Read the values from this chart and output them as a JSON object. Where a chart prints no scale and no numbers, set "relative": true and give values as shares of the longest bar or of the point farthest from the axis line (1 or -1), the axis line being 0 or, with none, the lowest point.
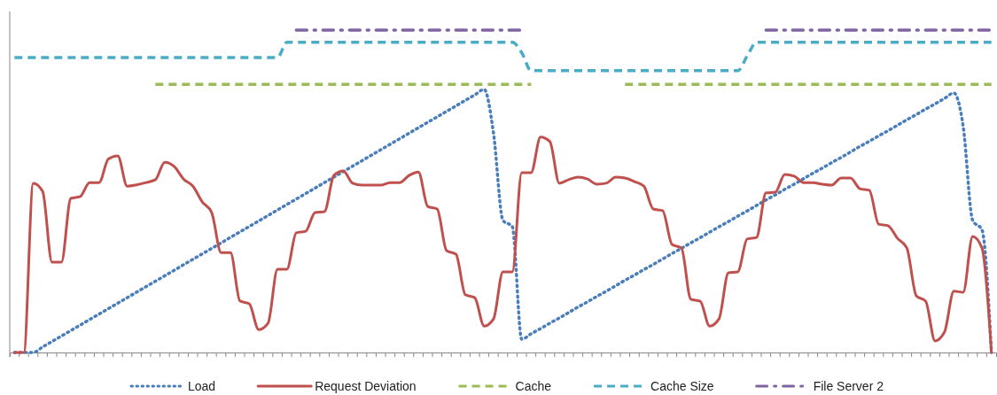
{
  "chart_data": {
    "type": "line",
    "relative": true,
    "categories": [
      null,
      null,
      null,
      null,
      null,
      null,
      null,
      null,
      null,
      null,
      null,
      null,
      null,
      null,
      null,
      null,
      null,
      null,
      null,
      null,
      null,
      null,
      null,
      null,
      null,
      null,
      null,
      null,
      null,
      null,
      null,
      null,
      null,
      null,
      null,
      null,
      null,
      null,
      null,
      null,
      null,
      null,
      null,
      null,
      null,
      null,
      null,
      null,
      null,
      null,
      null,
      null,
      null,
      null,
      null,
      null,
      null,
      null,
      null,
      null,
      null,
      null,
      null,
      null,
      null,
      null,
      null,
      null,
      null,
      null,
      null,
      null,
      null,
      null,
      null,
      null,
      null,
      null,
      null,
      null,
      null,
      null,
      null,
      null,
      null,
      null,
      null,
      null,
      null,
      null,
      null,
      null,
      null,
      null,
      null,
      null,
      null,
      null,
      null,
      null,
      null,
      null,
      null,
      null,
      null
    ],
    "grid": false,
    "legend": "bottom",
    "marker": "none",
    "series": [
      {
        "name": "Load",
        "color": "#4a7ebb",
        "line_style": "dotted",
        "values": [
          0,
          0,
          0,
          0.017,
          0.034,
          0.051,
          0.068,
          0.085,
          0.102,
          0.119,
          0.136,
          0.153,
          0.17,
          0.187,
          0.204,
          0.221,
          0.238,
          0.255,
          0.272,
          0.289,
          0.306,
          0.323,
          0.34,
          0.357,
          0.374,
          0.391,
          0.408,
          0.425,
          0.442,
          0.459,
          0.476,
          0.493,
          0.51,
          0.527,
          0.544,
          0.561,
          0.578,
          0.595,
          0.612,
          0.629,
          0.646,
          0.663,
          0.68,
          0.697,
          0.714,
          0.731,
          0.748,
          0.765,
          0.782,
          0.799,
          0.816,
          0.68,
          0.41,
          0.39,
          0.041,
          0.058,
          0.074,
          0.091,
          0.107,
          0.124,
          0.141,
          0.157,
          0.174,
          0.19,
          0.207,
          0.224,
          0.24,
          0.257,
          0.273,
          0.29,
          0.307,
          0.323,
          0.34,
          0.356,
          0.373,
          0.39,
          0.406,
          0.423,
          0.439,
          0.456,
          0.473,
          0.489,
          0.506,
          0.522,
          0.539,
          0.556,
          0.572,
          0.589,
          0.605,
          0.622,
          0.639,
          0.655,
          0.672,
          0.688,
          0.705,
          0.722,
          0.738,
          0.755,
          0.771,
          0.788,
          0.805,
          0.7,
          0.41,
          0.38,
          0
        ]
      },
      {
        "name": "Request Deviation",
        "color": "#c0504d",
        "line_style": "solid",
        "values": [
          0,
          0,
          0.525,
          0.5,
          0.28,
          0.28,
          0.478,
          0.484,
          0.527,
          0.527,
          0.6,
          0.61,
          0.516,
          0.52,
          0.527,
          0.536,
          0.59,
          0.577,
          0.538,
          0.516,
          0.467,
          0.434,
          0.31,
          0.31,
          0.16,
          0.151,
          0.071,
          0.091,
          0.258,
          0.258,
          0.371,
          0.376,
          0.434,
          0.437,
          0.549,
          0.563,
          0.525,
          0.519,
          0.519,
          0.519,
          0.527,
          0.527,
          0.549,
          0.56,
          0.453,
          0.445,
          0.316,
          0.305,
          0.179,
          0.17,
          0.082,
          0.104,
          0.25,
          0.25,
          0.558,
          0.558,
          0.668,
          0.654,
          0.525,
          0.536,
          0.544,
          0.538,
          0.522,
          0.525,
          0.544,
          0.541,
          0.53,
          0.516,
          0.445,
          0.44,
          0.335,
          0.324,
          0.165,
          0.159,
          0.082,
          0.104,
          0.247,
          0.25,
          0.352,
          0.357,
          0.495,
          0.497,
          0.552,
          0.547,
          0.527,
          0.527,
          0.522,
          0.519,
          0.541,
          0.541,
          0.508,
          0.503,
          0.398,
          0.393,
          0.354,
          0.324,
          0.176,
          0.159,
          0.036,
          0.063,
          0.19,
          0.187,
          0.36,
          0.324,
          0
        ]
      },
      {
        "name": "Cache",
        "color": "#9bbb59",
        "line_style": "dashed",
        "values": [
          null,
          null,
          null,
          null,
          null,
          null,
          null,
          null,
          null,
          null,
          null,
          null,
          null,
          null,
          null,
          0.832,
          0.832,
          0.832,
          0.832,
          0.832,
          0.832,
          0.832,
          0.832,
          0.832,
          0.832,
          0.832,
          0.832,
          0.832,
          0.832,
          0.832,
          0.832,
          0.832,
          0.832,
          0.832,
          0.832,
          0.832,
          0.832,
          0.832,
          0.832,
          0.832,
          0.832,
          0.832,
          0.832,
          0.832,
          0.832,
          0.832,
          0.832,
          0.832,
          0.832,
          0.832,
          0.832,
          0.832,
          0.832,
          0.832,
          0.832,
          0.832,
          null,
          null,
          null,
          null,
          null,
          null,
          null,
          null,
          null,
          0.832,
          0.832,
          0.832,
          0.832,
          0.832,
          0.832,
          0.832,
          0.832,
          0.832,
          0.832,
          0.832,
          0.832,
          0.832,
          0.832,
          0.832,
          0.832,
          0.832,
          0.832,
          0.832,
          0.832,
          0.832,
          0.832,
          0.832,
          0.832,
          0.832,
          0.832,
          0.832,
          0.832,
          0.832,
          0.832,
          0.832,
          0.832,
          0.832,
          0.832,
          0.832,
          0.832,
          0.832,
          0.832,
          0.832,
          0.832
        ]
      },
      {
        "name": "Cache Size",
        "color": "#4bacc6",
        "line_style": "dashed",
        "values": [
          0.915,
          0.915,
          0.915,
          0.915,
          0.915,
          0.915,
          0.915,
          0.915,
          0.915,
          0.915,
          0.915,
          0.915,
          0.915,
          0.915,
          0.915,
          0.915,
          0.915,
          0.915,
          0.915,
          0.915,
          0.915,
          0.915,
          0.915,
          0.915,
          0.915,
          0.915,
          0.915,
          0.915,
          0.915,
          0.962,
          0.962,
          0.962,
          0.962,
          0.962,
          0.962,
          0.962,
          0.962,
          0.962,
          0.962,
          0.962,
          0.962,
          0.962,
          0.962,
          0.962,
          0.962,
          0.962,
          0.962,
          0.962,
          0.962,
          0.962,
          0.962,
          0.962,
          0.962,
          0.962,
          0.93,
          0.874,
          0.874,
          0.874,
          0.874,
          0.874,
          0.874,
          0.874,
          0.874,
          0.874,
          0.874,
          0.874,
          0.874,
          0.874,
          0.874,
          0.874,
          0.874,
          0.874,
          0.874,
          0.874,
          0.874,
          0.874,
          0.874,
          0.874,
          0.92,
          0.962,
          0.962,
          0.962,
          0.962,
          0.962,
          0.962,
          0.962,
          0.962,
          0.962,
          0.962,
          0.962,
          0.962,
          0.962,
          0.962,
          0.962,
          0.962,
          0.962,
          0.962,
          0.962,
          0.962,
          0.962,
          0.962,
          0.962,
          0.962,
          0.962,
          0.962
        ]
      },
      {
        "name": "File Server 2",
        "color": "#8064a2",
        "line_style": "dashdot",
        "values": [
          null,
          null,
          null,
          null,
          null,
          null,
          null,
          null,
          null,
          null,
          null,
          null,
          null,
          null,
          null,
          null,
          null,
          null,
          null,
          null,
          null,
          null,
          null,
          null,
          null,
          null,
          null,
          null,
          null,
          null,
          1,
          1,
          1,
          1,
          1,
          1,
          1,
          1,
          1,
          1,
          1,
          1,
          1,
          1,
          1,
          1,
          1,
          1,
          1,
          1,
          1,
          1,
          1,
          1,
          1,
          null,
          null,
          null,
          null,
          null,
          null,
          null,
          null,
          null,
          null,
          null,
          null,
          null,
          null,
          null,
          null,
          null,
          null,
          null,
          null,
          null,
          null,
          null,
          null,
          null,
          1,
          1,
          1,
          1,
          1,
          1,
          1,
          1,
          1,
          1,
          1,
          1,
          1,
          1,
          1,
          1,
          1,
          1,
          1,
          1,
          1,
          1,
          1,
          1,
          1
        ]
      }
    ]
  }
}
